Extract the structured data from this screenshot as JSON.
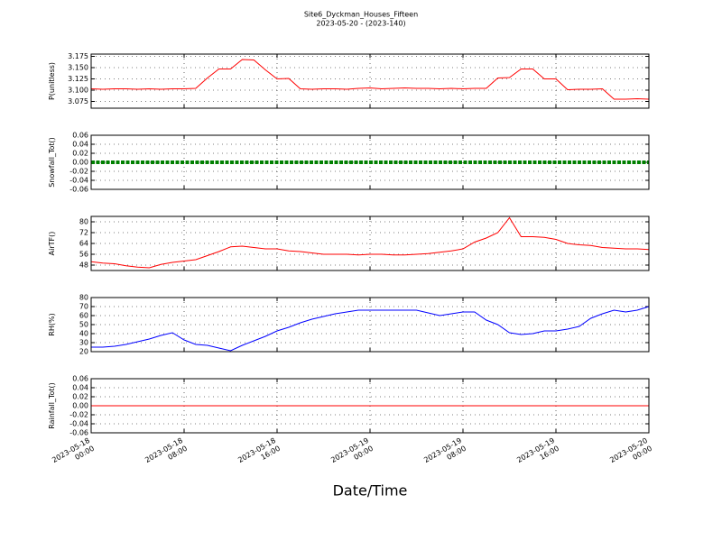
{
  "chart_data": [
    {
      "type": "line",
      "title": "Site6_Dyckman_Houses_Fifteen",
      "subtitle": "2023-05-20 - (2023-140)",
      "ylabel": "P(unitless)",
      "x": [
        0,
        1,
        2,
        3,
        4,
        5,
        6,
        7,
        8,
        9,
        10,
        11,
        12,
        13,
        14,
        15,
        16,
        17,
        18,
        19,
        20,
        21,
        22,
        23,
        24,
        25,
        26,
        27,
        28,
        29,
        30,
        31,
        32,
        33,
        34,
        35,
        36,
        37,
        38,
        39,
        40,
        41,
        42,
        43,
        44,
        45,
        46,
        47,
        48
      ],
      "series": [
        {
          "color": "#ff0000",
          "values": [
            3.103,
            3.102,
            3.103,
            3.103,
            3.102,
            3.103,
            3.102,
            3.103,
            3.103,
            3.104,
            3.127,
            3.147,
            3.147,
            3.168,
            3.167,
            3.145,
            3.125,
            3.126,
            3.103,
            3.102,
            3.103,
            3.103,
            3.102,
            3.104,
            3.105,
            3.103,
            3.104,
            3.105,
            3.104,
            3.104,
            3.103,
            3.104,
            3.103,
            3.104,
            3.104,
            3.127,
            3.128,
            3.147,
            3.147,
            3.125,
            3.125,
            3.101,
            3.102,
            3.102,
            3.103,
            3.08,
            3.08,
            3.081,
            3.08
          ]
        }
      ],
      "xlim": [
        0,
        48
      ],
      "xticks": [
        0,
        8,
        16,
        24,
        32,
        40,
        48
      ],
      "ylim": [
        3.06,
        3.18
      ],
      "yticks": [
        3.075,
        {
          "value": 3.1,
          "label": "3.100"
        },
        3.125,
        {
          "value": 3.15,
          "label": "3.150"
        },
        3.175
      ],
      "grid": true
    },
    {
      "type": "line",
      "ylabel": "Snowfall_Tot()",
      "x": [
        0,
        1,
        2,
        3,
        4,
        5,
        6,
        7,
        8,
        9,
        10,
        11,
        12,
        13,
        14,
        15,
        16,
        17,
        18,
        19,
        20,
        21,
        22,
        23,
        24,
        25,
        26,
        27,
        28,
        29,
        30,
        31,
        32,
        33,
        34,
        35,
        36,
        37,
        38,
        39,
        40,
        41,
        42,
        43,
        44,
        45,
        46,
        47,
        48
      ],
      "series": [
        {
          "color": "#008000",
          "style": "dots",
          "values": [
            0,
            0,
            0,
            0,
            0,
            0,
            0,
            0,
            0,
            0,
            0,
            0,
            0,
            0,
            0,
            0,
            0,
            0,
            0,
            0,
            0,
            0,
            0,
            0,
            0,
            0,
            0,
            0,
            0,
            0,
            0,
            0,
            0,
            0,
            0,
            0,
            0,
            0,
            0,
            0,
            0,
            0,
            0,
            0,
            0,
            0,
            0,
            0,
            0
          ]
        }
      ],
      "xlim": [
        0,
        48
      ],
      "xticks": [
        0,
        8,
        16,
        24,
        32,
        40,
        48
      ],
      "ylim": [
        -0.06,
        0.06
      ],
      "yticks": [
        -0.06,
        -0.04,
        -0.02,
        {
          "value": 0,
          "label": "0.00"
        },
        0.02,
        0.04,
        0.06
      ],
      "grid": true
    },
    {
      "type": "line",
      "ylabel": "AirTF()",
      "x": [
        0,
        1,
        2,
        3,
        4,
        5,
        6,
        7,
        8,
        9,
        10,
        11,
        12,
        13,
        14,
        15,
        16,
        17,
        18,
        19,
        20,
        21,
        22,
        23,
        24,
        25,
        26,
        27,
        28,
        29,
        30,
        31,
        32,
        33,
        34,
        35,
        36,
        37,
        38,
        39,
        40,
        41,
        42,
        43,
        44,
        45,
        46,
        47,
        48
      ],
      "series": [
        {
          "color": "#ff0000",
          "values": [
            50.5,
            49.5,
            49,
            47.5,
            46.5,
            46,
            48.5,
            50,
            51,
            52,
            55,
            58,
            61.5,
            62,
            61,
            60,
            60,
            58.5,
            58,
            57,
            56,
            56,
            56,
            55.5,
            56,
            56,
            55.5,
            55.5,
            56,
            56.5,
            57.5,
            58.5,
            60,
            65,
            68,
            72,
            83,
            69,
            69,
            68.5,
            67,
            64,
            63,
            62.5,
            61,
            60.5,
            60,
            60,
            59.5
          ]
        }
      ],
      "xlim": [
        0,
        48
      ],
      "xticks": [
        0,
        8,
        16,
        24,
        32,
        40,
        48
      ],
      "ylim": [
        44,
        84
      ],
      "yticks": [
        48,
        56,
        64,
        72,
        80
      ],
      "grid": true
    },
    {
      "type": "line",
      "ylabel": "RH(%)",
      "x": [
        0,
        1,
        2,
        3,
        4,
        5,
        6,
        7,
        8,
        9,
        10,
        11,
        12,
        13,
        14,
        15,
        16,
        17,
        18,
        19,
        20,
        21,
        22,
        23,
        24,
        25,
        26,
        27,
        28,
        29,
        30,
        31,
        32,
        33,
        34,
        35,
        36,
        37,
        38,
        39,
        40,
        41,
        42,
        43,
        44,
        45,
        46,
        47,
        48
      ],
      "series": [
        {
          "color": "#0000ff",
          "values": [
            25,
            25,
            26,
            28,
            31,
            34,
            38,
            41,
            33,
            28,
            27,
            24,
            21,
            27,
            32,
            37,
            43,
            47,
            52,
            56,
            59,
            62,
            64,
            66,
            66,
            66,
            66,
            66,
            66,
            63,
            60,
            62,
            64,
            64,
            55,
            50,
            41,
            39,
            40,
            43,
            43,
            45,
            48,
            57,
            62,
            66,
            64,
            66,
            70
          ]
        }
      ],
      "xlim": [
        0,
        48
      ],
      "xticks": [
        0,
        8,
        16,
        24,
        32,
        40,
        48
      ],
      "ylim": [
        20,
        80
      ],
      "yticks": [
        20,
        30,
        40,
        50,
        60,
        70,
        80
      ],
      "grid": true
    },
    {
      "type": "line",
      "ylabel": "Rainfall_Tot()",
      "xlabel": "Date/Time",
      "x": [
        0,
        1,
        2,
        3,
        4,
        5,
        6,
        7,
        8,
        9,
        10,
        11,
        12,
        13,
        14,
        15,
        16,
        17,
        18,
        19,
        20,
        21,
        22,
        23,
        24,
        25,
        26,
        27,
        28,
        29,
        30,
        31,
        32,
        33,
        34,
        35,
        36,
        37,
        38,
        39,
        40,
        41,
        42,
        43,
        44,
        45,
        46,
        47,
        48
      ],
      "series": [
        {
          "color": "#ff0000",
          "values": [
            0,
            0,
            0,
            0,
            0,
            0,
            0,
            0,
            0,
            0,
            0,
            0,
            0,
            0,
            0,
            0,
            0,
            0,
            0,
            0,
            0,
            0,
            0,
            0,
            0,
            0,
            0,
            0,
            0,
            0,
            0,
            0,
            0,
            0,
            0,
            0,
            0,
            0,
            0,
            0,
            0,
            0,
            0,
            0,
            0,
            0,
            0,
            0,
            0
          ]
        }
      ],
      "xlim": [
        0,
        48
      ],
      "xticks": [
        {
          "value": 0,
          "label": "2023-05-18 00:00"
        },
        {
          "value": 8,
          "label": "2023-05-18 08:00"
        },
        {
          "value": 16,
          "label": "2023-05-18 16:00"
        },
        {
          "value": 24,
          "label": "2023-05-19 00:00"
        },
        {
          "value": 32,
          "label": "2023-05-19 08:00"
        },
        {
          "value": 40,
          "label": "2023-05-19 16:00"
        },
        {
          "value": 48,
          "label": "2023-05-20 00:00"
        }
      ],
      "ylim": [
        -0.06,
        0.06
      ],
      "yticks": [
        -0.06,
        -0.04,
        -0.02,
        {
          "value": 0,
          "label": "0.00"
        },
        0.02,
        0.04,
        0.06
      ],
      "grid": true
    }
  ]
}
